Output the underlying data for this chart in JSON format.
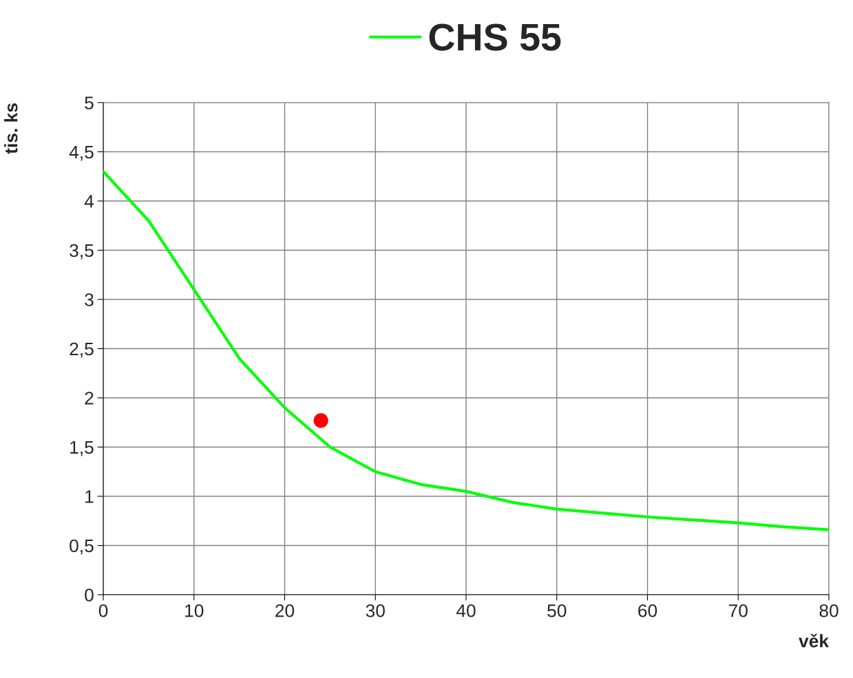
{
  "chart_data": {
    "type": "line",
    "xlabel": "věk",
    "ylabel": "tis. ks",
    "series": [
      {
        "name": "CHS 55",
        "color": "#00ff00",
        "x": [
          0,
          5,
          10,
          15,
          20,
          25,
          30,
          35,
          40,
          45,
          50,
          55,
          60,
          65,
          70,
          75,
          80
        ],
        "values": [
          4.3,
          3.8,
          3.1,
          2.4,
          1.9,
          1.5,
          1.25,
          1.12,
          1.05,
          0.94,
          0.87,
          0.83,
          0.79,
          0.76,
          0.73,
          0.69,
          0.66
        ]
      },
      {
        "type": "scatter",
        "color": "#ff0000",
        "marker": "circle",
        "x": [
          24
        ],
        "values": [
          1.77
        ]
      }
    ],
    "xlim": [
      0,
      80
    ],
    "xticks": [
      0,
      10,
      20,
      30,
      40,
      50,
      60,
      70,
      80
    ],
    "ylim": [
      0,
      5
    ],
    "yticks": [
      0,
      {
        "value": 0.5,
        "label": "0,5"
      },
      1,
      {
        "value": 1.5,
        "label": "1,5"
      },
      2,
      {
        "value": 2.5,
        "label": "2,5"
      },
      3,
      {
        "value": 3.5,
        "label": "3,5"
      },
      4,
      {
        "value": 4.5,
        "label": "4,5"
      },
      5
    ],
    "grid": true,
    "legend": "top",
    "marker": "none",
    "line_style": "solid"
  }
}
